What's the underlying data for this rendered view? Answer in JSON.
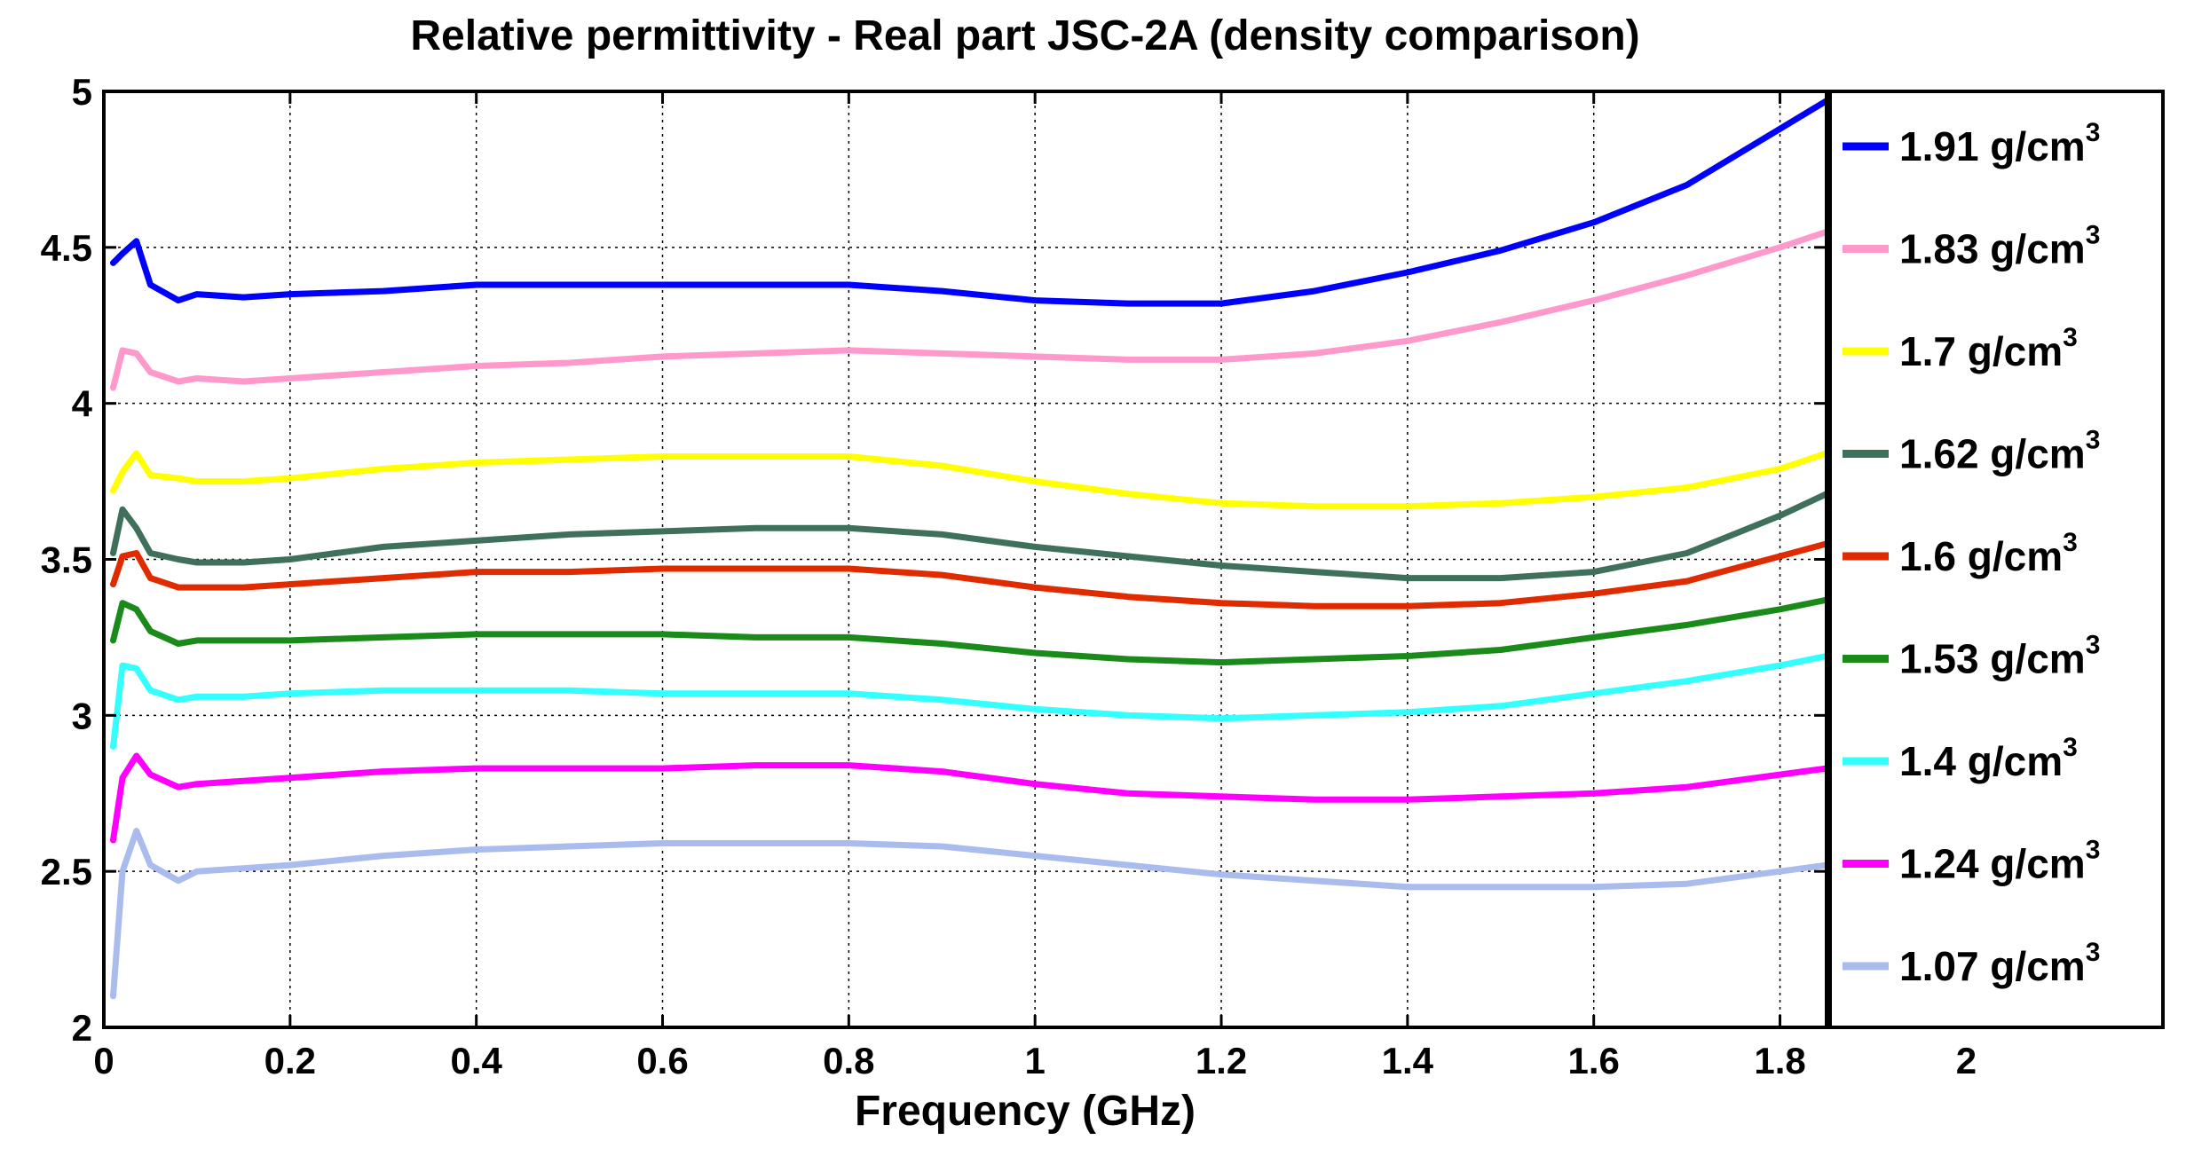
{
  "chart_data": {
    "type": "line",
    "title": "Relative permittivity - Real part  JSC-2A (density comparison)",
    "xlabel": "Frequency (GHz)",
    "ylabel": "",
    "xlim": [
      0,
      1.85
    ],
    "ylim": [
      2,
      5
    ],
    "grid": true,
    "legend_position": "right-outside",
    "xticks": [
      "0",
      "0.2",
      "0.4",
      "0.6",
      "0.8",
      "1",
      "1.2",
      "1.4",
      "1.6",
      "1.8",
      "2"
    ],
    "xtick_values": [
      0,
      0.2,
      0.4,
      0.6,
      0.8,
      1,
      1.2,
      1.4,
      1.6,
      1.8,
      2
    ],
    "yticks": [
      "2",
      "2.5",
      "3",
      "3.5",
      "4",
      "4.5",
      "5"
    ],
    "ytick_values": [
      2,
      2.5,
      3,
      3.5,
      4,
      4.5,
      5
    ],
    "unit_base": "g/cm",
    "unit_exp": "3",
    "x": [
      0.01,
      0.02,
      0.035,
      0.05,
      0.08,
      0.1,
      0.15,
      0.2,
      0.3,
      0.4,
      0.5,
      0.6,
      0.7,
      0.8,
      0.9,
      1.0,
      1.1,
      1.2,
      1.3,
      1.4,
      1.5,
      1.6,
      1.7,
      1.8,
      1.85
    ],
    "series": [
      {
        "name": "1.91",
        "color": "#0000ff",
        "values": [
          4.45,
          4.48,
          4.52,
          4.38,
          4.33,
          4.35,
          4.34,
          4.35,
          4.36,
          4.38,
          4.38,
          4.38,
          4.38,
          4.38,
          4.36,
          4.33,
          4.32,
          4.32,
          4.36,
          4.42,
          4.49,
          4.58,
          4.7,
          4.88,
          4.97
        ]
      },
      {
        "name": "1.83",
        "color": "#ff99cc",
        "values": [
          4.05,
          4.17,
          4.16,
          4.1,
          4.07,
          4.08,
          4.07,
          4.08,
          4.1,
          4.12,
          4.13,
          4.15,
          4.16,
          4.17,
          4.16,
          4.15,
          4.14,
          4.14,
          4.16,
          4.2,
          4.26,
          4.33,
          4.41,
          4.5,
          4.55
        ]
      },
      {
        "name": "1.7",
        "color": "#ffff00",
        "values": [
          3.72,
          3.78,
          3.84,
          3.77,
          3.76,
          3.75,
          3.75,
          3.76,
          3.79,
          3.81,
          3.82,
          3.83,
          3.83,
          3.83,
          3.8,
          3.75,
          3.71,
          3.68,
          3.67,
          3.67,
          3.68,
          3.7,
          3.73,
          3.79,
          3.84
        ]
      },
      {
        "name": "1.62",
        "color": "#3f705c",
        "values": [
          3.52,
          3.66,
          3.6,
          3.52,
          3.5,
          3.49,
          3.49,
          3.5,
          3.54,
          3.56,
          3.58,
          3.59,
          3.6,
          3.6,
          3.58,
          3.54,
          3.51,
          3.48,
          3.46,
          3.44,
          3.44,
          3.46,
          3.52,
          3.64,
          3.71
        ]
      },
      {
        "name": "1.6",
        "color": "#e02a00",
        "values": [
          3.42,
          3.51,
          3.52,
          3.44,
          3.41,
          3.41,
          3.41,
          3.42,
          3.44,
          3.46,
          3.46,
          3.47,
          3.47,
          3.47,
          3.45,
          3.41,
          3.38,
          3.36,
          3.35,
          3.35,
          3.36,
          3.39,
          3.43,
          3.51,
          3.55
        ]
      },
      {
        "name": "1.53",
        "color": "#1a8a1a",
        "values": [
          3.24,
          3.36,
          3.34,
          3.27,
          3.23,
          3.24,
          3.24,
          3.24,
          3.25,
          3.26,
          3.26,
          3.26,
          3.25,
          3.25,
          3.23,
          3.2,
          3.18,
          3.17,
          3.18,
          3.19,
          3.21,
          3.25,
          3.29,
          3.34,
          3.37
        ]
      },
      {
        "name": "1.4",
        "color": "#33ffff",
        "values": [
          2.9,
          3.16,
          3.15,
          3.08,
          3.05,
          3.06,
          3.06,
          3.07,
          3.08,
          3.08,
          3.08,
          3.07,
          3.07,
          3.07,
          3.05,
          3.02,
          3.0,
          2.99,
          3.0,
          3.01,
          3.03,
          3.07,
          3.11,
          3.16,
          3.19
        ]
      },
      {
        "name": "1.24",
        "color": "#ff00ff",
        "values": [
          2.6,
          2.8,
          2.87,
          2.81,
          2.77,
          2.78,
          2.79,
          2.8,
          2.82,
          2.83,
          2.83,
          2.83,
          2.84,
          2.84,
          2.82,
          2.78,
          2.75,
          2.74,
          2.73,
          2.73,
          2.74,
          2.75,
          2.77,
          2.81,
          2.83
        ]
      },
      {
        "name": "1.07",
        "color": "#aabbee",
        "values": [
          2.1,
          2.5,
          2.63,
          2.52,
          2.47,
          2.5,
          2.51,
          2.52,
          2.55,
          2.57,
          2.58,
          2.59,
          2.59,
          2.59,
          2.58,
          2.55,
          2.52,
          2.49,
          2.47,
          2.45,
          2.45,
          2.45,
          2.46,
          2.5,
          2.52
        ]
      }
    ]
  }
}
